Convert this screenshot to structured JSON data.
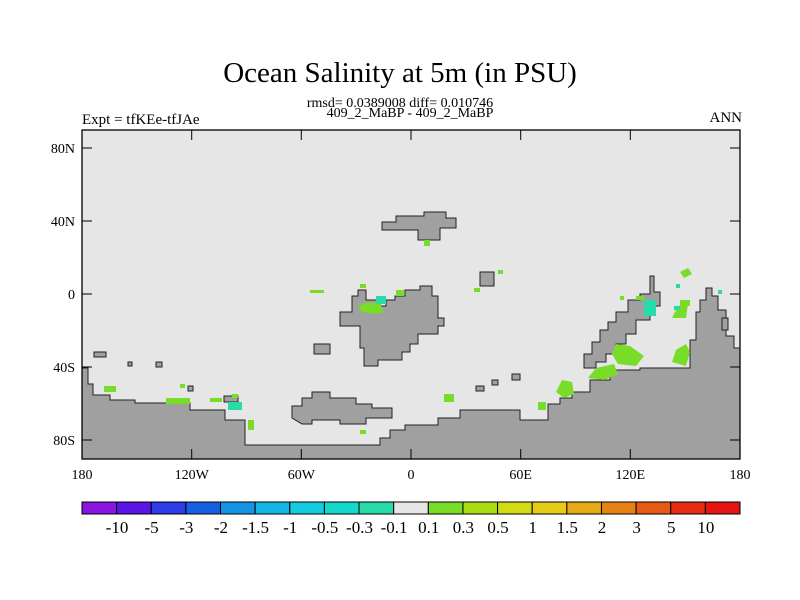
{
  "header": {
    "title": "Ocean Salinity at 5m (in PSU)",
    "subtitle": "rmsd= 0.0389008 diff= 0.010746",
    "left_label": "Expt = tfKEe-tfJAe",
    "center_label": "409_2_MaBP - 409_2_MaBP",
    "right_label": "ANN"
  },
  "map": {
    "lat_ticks": [
      "80N",
      "40N",
      "0",
      "40S",
      "80S"
    ],
    "lon_ticks": [
      "180",
      "120W",
      "60W",
      "0",
      "60E",
      "120E",
      "180"
    ],
    "land_color": "#a0a0a0",
    "ocean_color": "#e6e6e6"
  },
  "colorbar": {
    "labels": [
      "-10",
      "-5",
      "-3",
      "-2",
      "-1.5",
      "-1",
      "-0.5",
      "-0.3",
      "-0.1",
      "0.1",
      "0.3",
      "0.5",
      "1",
      "1.5",
      "2",
      "3",
      "5",
      "10"
    ],
    "colors": [
      "#8a14e0",
      "#5a14e6",
      "#2d3ce6",
      "#1460e0",
      "#1496e6",
      "#14b4e6",
      "#14cce0",
      "#14d8cc",
      "#28dcaa",
      "#e6e6e6",
      "#78dc28",
      "#aadc14",
      "#d2dc14",
      "#e6cc14",
      "#e6aa14",
      "#e68214",
      "#e65a14",
      "#e62d14",
      "#e61414"
    ]
  }
}
